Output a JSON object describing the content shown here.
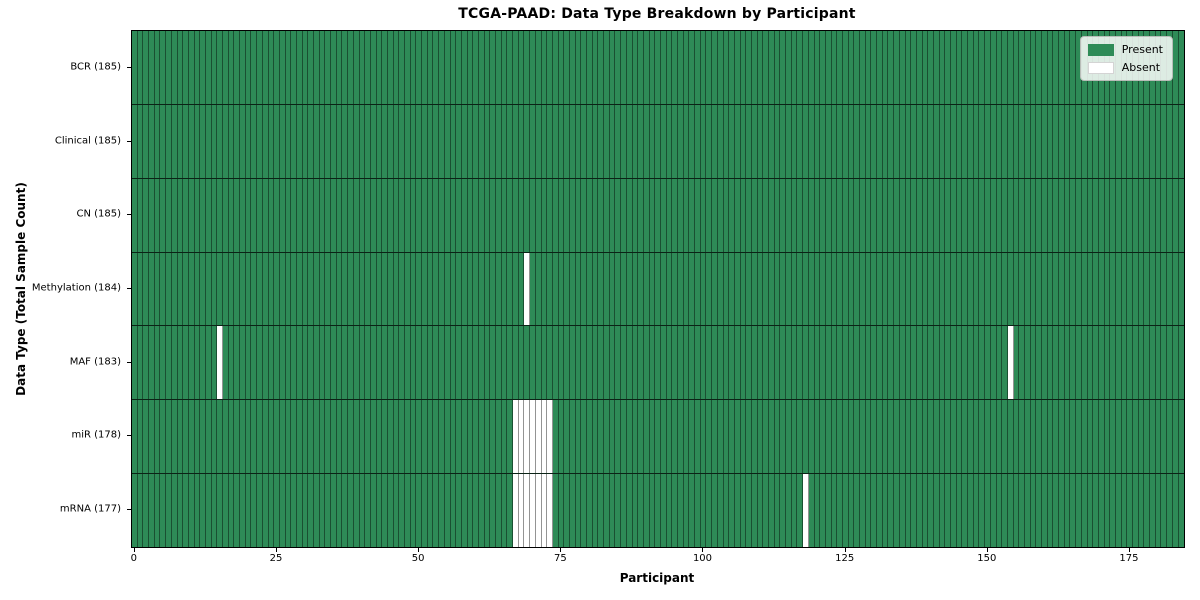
{
  "title": "TCGA-PAAD: Data Type Breakdown by Participant",
  "axes": {
    "xlabel": "Participant",
    "ylabel": "Data Type (Total Sample Count)"
  },
  "legend": {
    "items": [
      {
        "label": "Present",
        "color": "#2e8b57"
      },
      {
        "label": "Absent",
        "color": "#ffffff"
      }
    ],
    "position": "upper right"
  },
  "chart_data": {
    "type": "heatmap",
    "title": "TCGA-PAAD: Data Type Breakdown by Participant",
    "xlabel": "Participant",
    "ylabel": "Data Type (Total Sample Count)",
    "n_participants": 185,
    "x_tick_values": [
      0,
      25,
      50,
      75,
      100,
      125,
      150,
      175
    ],
    "grid": "cell-borders",
    "legend_position": "upper right",
    "colors": {
      "present": "#2e8b57",
      "absent": "#ffffff"
    },
    "rows": [
      {
        "label": "BCR (185)",
        "data_type": "BCR",
        "total_sample_count": 185,
        "absent_participants": []
      },
      {
        "label": "Clinical (185)",
        "data_type": "Clinical",
        "total_sample_count": 185,
        "absent_participants": []
      },
      {
        "label": "CN (185)",
        "data_type": "CN",
        "total_sample_count": 185,
        "absent_participants": []
      },
      {
        "label": "Methylation (184)",
        "data_type": "Methylation",
        "total_sample_count": 184,
        "absent_participants": [
          69
        ]
      },
      {
        "label": "MAF (183)",
        "data_type": "MAF",
        "total_sample_count": 183,
        "absent_participants": [
          15,
          154
        ]
      },
      {
        "label": "miR (178)",
        "data_type": "miR",
        "total_sample_count": 178,
        "absent_participants": [
          67,
          68,
          69,
          70,
          71,
          72,
          73
        ]
      },
      {
        "label": "mRNA (177)",
        "data_type": "mRNA",
        "total_sample_count": 177,
        "absent_participants": [
          67,
          68,
          69,
          70,
          71,
          72,
          73,
          118
        ]
      }
    ]
  }
}
